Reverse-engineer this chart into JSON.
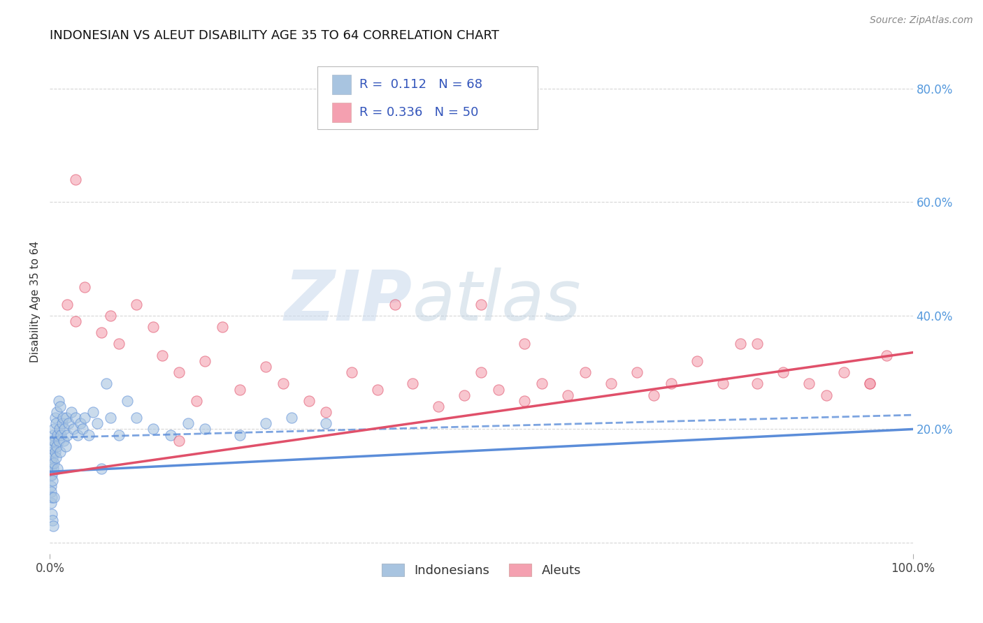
{
  "title": "INDONESIAN VS ALEUT DISABILITY AGE 35 TO 64 CORRELATION CHART",
  "source": "Source: ZipAtlas.com",
  "ylabel": "Disability Age 35 to 64",
  "xlim": [
    0.0,
    1.0
  ],
  "ylim": [
    -0.02,
    0.87
  ],
  "indonesian_R": 0.112,
  "indonesian_N": 68,
  "aleut_R": 0.336,
  "aleut_N": 50,
  "indonesian_color": "#a8c4e0",
  "aleut_color": "#f4a0b0",
  "indonesian_line_color": "#5b8dd9",
  "aleut_line_color": "#e0506a",
  "grid_color": "#cccccc",
  "background_color": "#ffffff",
  "indo_line_x0": 0.0,
  "indo_line_y0": 0.125,
  "indo_line_x1": 1.0,
  "indo_line_y1": 0.2,
  "aleut_line_x0": 0.0,
  "aleut_line_y0": 0.12,
  "aleut_line_x1": 1.0,
  "aleut_line_y1": 0.335,
  "dash_line_x0": 0.0,
  "dash_line_y0": 0.185,
  "dash_line_x1": 1.0,
  "dash_line_y1": 0.225,
  "indo_x": [
    0.001,
    0.001,
    0.001,
    0.001,
    0.001,
    0.002,
    0.002,
    0.002,
    0.002,
    0.003,
    0.003,
    0.003,
    0.004,
    0.004,
    0.004,
    0.005,
    0.005,
    0.005,
    0.006,
    0.006,
    0.007,
    0.007,
    0.008,
    0.008,
    0.009,
    0.009,
    0.01,
    0.01,
    0.011,
    0.012,
    0.012,
    0.013,
    0.014,
    0.015,
    0.016,
    0.017,
    0.018,
    0.019,
    0.02,
    0.022,
    0.025,
    0.027,
    0.03,
    0.032,
    0.035,
    0.038,
    0.04,
    0.045,
    0.05,
    0.055,
    0.06,
    0.065,
    0.07,
    0.08,
    0.09,
    0.1,
    0.12,
    0.14,
    0.16,
    0.18,
    0.22,
    0.25,
    0.28,
    0.32,
    0.002,
    0.003,
    0.004,
    0.005
  ],
  "indo_y": [
    0.13,
    0.12,
    0.1,
    0.09,
    0.07,
    0.16,
    0.14,
    0.12,
    0.08,
    0.18,
    0.15,
    0.11,
    0.19,
    0.17,
    0.13,
    0.2,
    0.18,
    0.14,
    0.22,
    0.16,
    0.21,
    0.15,
    0.23,
    0.17,
    0.19,
    0.13,
    0.25,
    0.18,
    0.2,
    0.24,
    0.16,
    0.19,
    0.21,
    0.22,
    0.18,
    0.2,
    0.17,
    0.22,
    0.19,
    0.21,
    0.23,
    0.2,
    0.22,
    0.19,
    0.21,
    0.2,
    0.22,
    0.19,
    0.23,
    0.21,
    0.13,
    0.28,
    0.22,
    0.19,
    0.25,
    0.22,
    0.2,
    0.19,
    0.21,
    0.2,
    0.19,
    0.21,
    0.22,
    0.21,
    0.05,
    0.04,
    0.03,
    0.08
  ],
  "aleut_x": [
    0.02,
    0.03,
    0.04,
    0.06,
    0.07,
    0.08,
    0.1,
    0.12,
    0.13,
    0.15,
    0.17,
    0.18,
    0.2,
    0.22,
    0.25,
    0.27,
    0.3,
    0.32,
    0.35,
    0.38,
    0.4,
    0.42,
    0.45,
    0.48,
    0.5,
    0.52,
    0.55,
    0.57,
    0.6,
    0.62,
    0.65,
    0.68,
    0.7,
    0.72,
    0.75,
    0.78,
    0.8,
    0.82,
    0.85,
    0.88,
    0.9,
    0.92,
    0.95,
    0.97,
    0.5,
    0.55,
    0.03,
    0.82,
    0.95,
    0.15
  ],
  "aleut_y": [
    0.42,
    0.39,
    0.45,
    0.37,
    0.4,
    0.35,
    0.42,
    0.38,
    0.33,
    0.3,
    0.25,
    0.32,
    0.38,
    0.27,
    0.31,
    0.28,
    0.25,
    0.23,
    0.3,
    0.27,
    0.42,
    0.28,
    0.24,
    0.26,
    0.3,
    0.27,
    0.25,
    0.28,
    0.26,
    0.3,
    0.28,
    0.3,
    0.26,
    0.28,
    0.32,
    0.28,
    0.35,
    0.28,
    0.3,
    0.28,
    0.26,
    0.3,
    0.28,
    0.33,
    0.42,
    0.35,
    0.64,
    0.35,
    0.28,
    0.18
  ]
}
